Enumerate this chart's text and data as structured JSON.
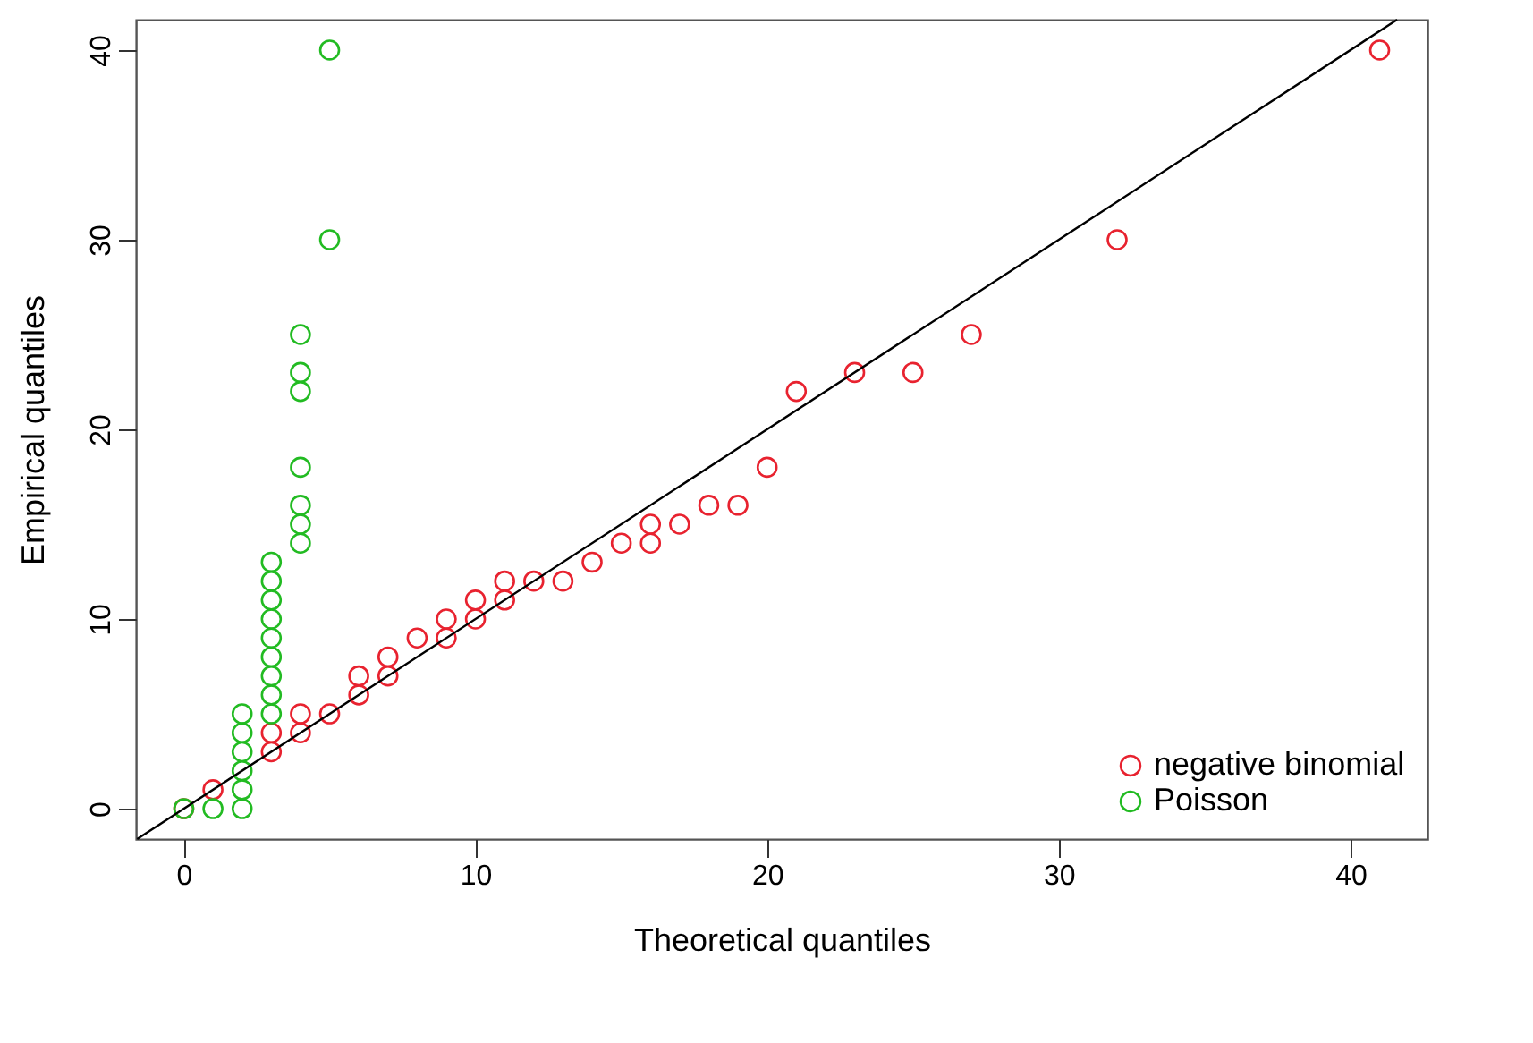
{
  "chart_data": {
    "type": "scatter",
    "xlabel": "Theoretical quantiles",
    "ylabel": "Empirical quantiles",
    "xlim": [
      -1.64,
      42.64
    ],
    "ylim": [
      -1.6,
      41.6
    ],
    "xticks": [
      0,
      10,
      20,
      30,
      40
    ],
    "yticks": [
      0,
      10,
      20,
      30,
      40
    ],
    "grid": false,
    "legend": "bottom right",
    "series": [
      {
        "name": "negative binomial",
        "color": "#e8222f",
        "marker": "circle",
        "x": [
          0,
          1,
          2,
          3,
          3,
          4,
          4,
          5,
          6,
          6,
          7,
          7,
          8,
          9,
          9,
          10,
          10,
          11,
          11,
          12,
          13,
          14,
          15,
          16,
          16,
          17,
          18,
          19,
          20,
          21,
          23,
          25,
          27,
          32,
          41
        ],
        "values": [
          0,
          1,
          null,
          3,
          4,
          4,
          5,
          5,
          6,
          7,
          7,
          8,
          9,
          9,
          10,
          10,
          11,
          11,
          12,
          12,
          12,
          13,
          14,
          14,
          15,
          15,
          16,
          16,
          18,
          22,
          23,
          23,
          25,
          30,
          40
        ]
      },
      {
        "name": "Poisson",
        "color": "#22bb22",
        "marker": "circle",
        "x": [
          0,
          1,
          2,
          2,
          2,
          2,
          2,
          2,
          3,
          3,
          3,
          3,
          3,
          3,
          3,
          3,
          3,
          4,
          4,
          4,
          4,
          4,
          4,
          4,
          5,
          5
        ],
        "values": [
          0,
          0,
          0,
          1,
          2,
          3,
          4,
          5,
          5,
          6,
          7,
          8,
          9,
          10,
          11,
          12,
          13,
          14,
          15,
          16,
          18,
          22,
          23,
          25,
          30,
          40
        ]
      },
      {
        "type": "line",
        "color": "#000000",
        "marker": "none",
        "x": [
          -1.6,
          41.6
        ],
        "values": [
          -1.6,
          41.6
        ]
      }
    ]
  }
}
